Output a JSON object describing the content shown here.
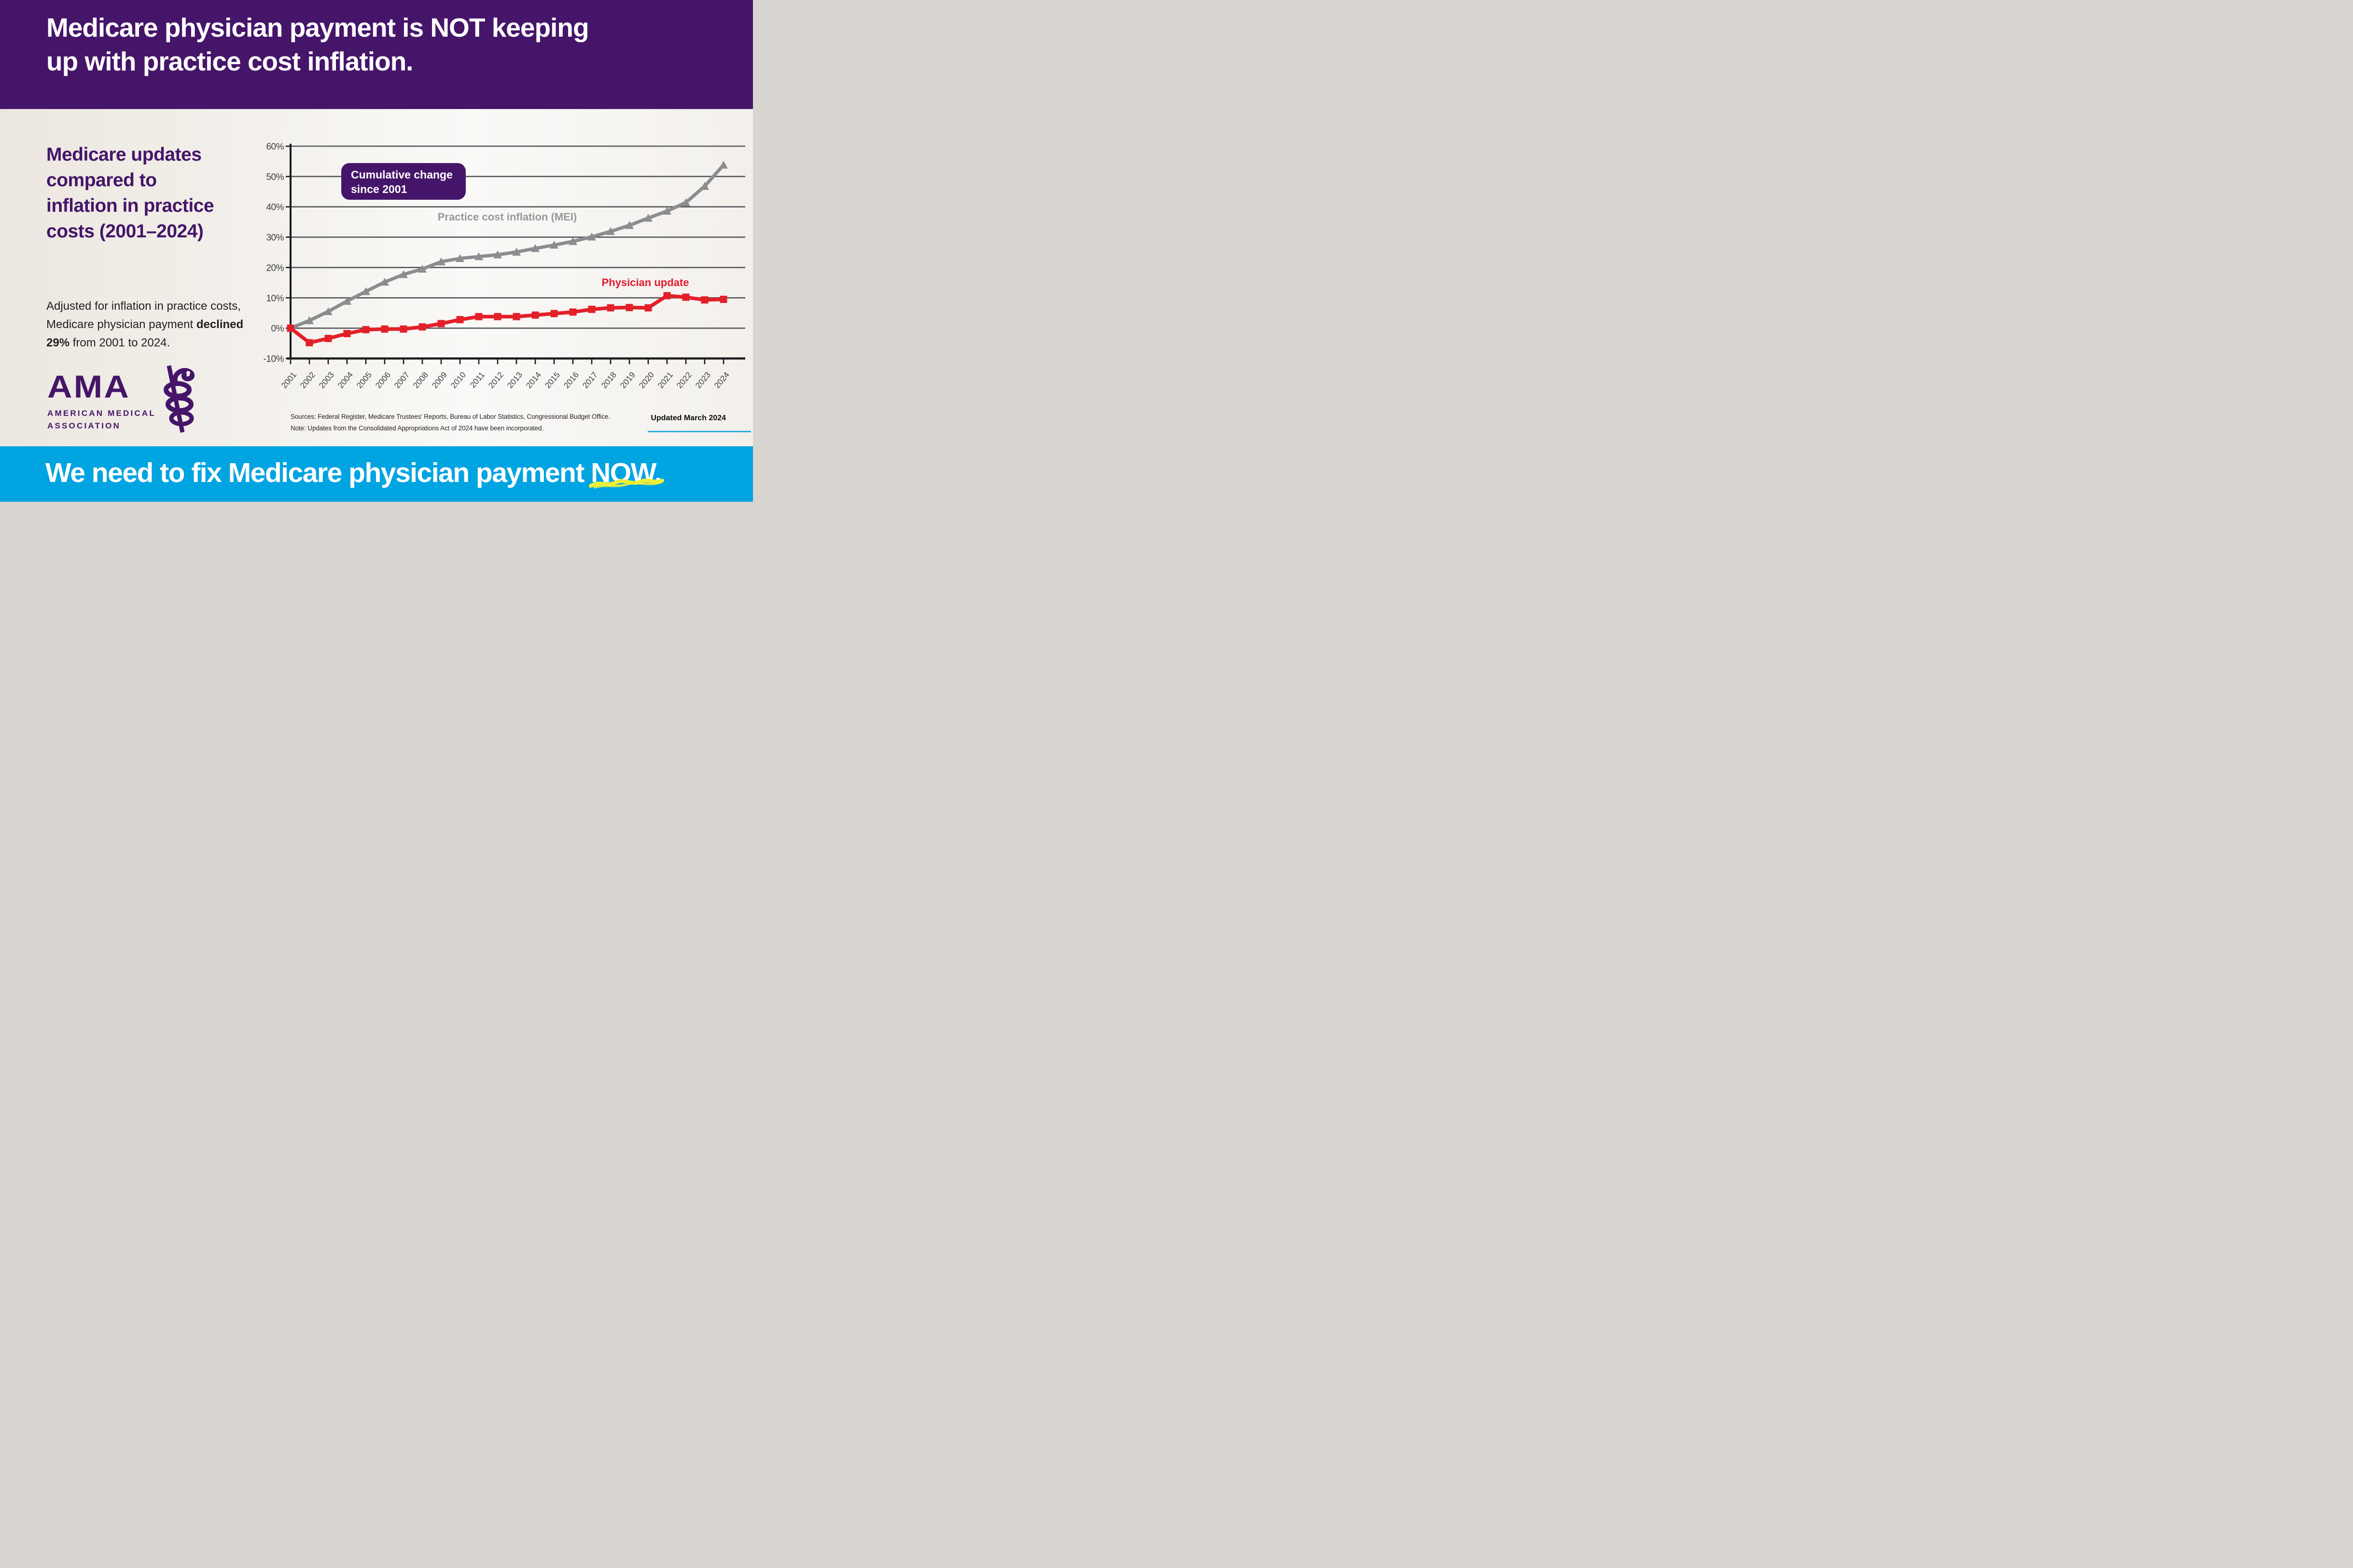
{
  "header": {
    "title_line1": "Medicare physician payment is NOT keeping",
    "title_line2": "up with practice cost inflation."
  },
  "left_panel": {
    "heading_lines": [
      "Medicare updates",
      "compared to",
      "inflation in practice",
      "costs (2001–2024)"
    ],
    "body_text_before": "Adjusted for inflation in practice costs, Medicare physician payment ",
    "body_text_bold": "declined 29%",
    "body_text_after": " from 2001 to 2024."
  },
  "logo": {
    "acronym": "AMA",
    "name_line1": "AMERICAN MEDICAL",
    "name_line2": "ASSOCIATION",
    "icon": "rod-of-asclepius-icon"
  },
  "chart_data": {
    "type": "line",
    "callout": {
      "line1": "Cumulative change",
      "line2": "since 2001"
    },
    "x": [
      2001,
      2002,
      2003,
      2004,
      2005,
      2006,
      2007,
      2008,
      2009,
      2010,
      2011,
      2012,
      2013,
      2014,
      2015,
      2016,
      2017,
      2018,
      2019,
      2020,
      2021,
      2022,
      2023,
      2024
    ],
    "series": [
      {
        "name": "Practice cost inflation (MEI)",
        "color": "#8b8d90",
        "label_color": "#97989b",
        "marker": "triangle",
        "values": [
          0,
          2.5,
          5.5,
          8.9,
          12.1,
          15.2,
          17.7,
          19.5,
          21.9,
          23.0,
          23.6,
          24.2,
          25.1,
          26.3,
          27.4,
          28.6,
          30.1,
          31.9,
          33.9,
          36.3,
          38.6,
          41.4,
          46.8,
          53.8
        ]
      },
      {
        "name": "Physician update",
        "color": "#e32029",
        "label_color": "#e31b2d",
        "marker": "square",
        "values": [
          0,
          -4.8,
          -3.4,
          -1.8,
          -0.5,
          -0.3,
          -0.3,
          0.4,
          1.5,
          2.8,
          3.8,
          3.8,
          3.8,
          4.3,
          4.8,
          5.3,
          6.2,
          6.7,
          6.8,
          6.7,
          10.7,
          10.2,
          9.3,
          9.5
        ]
      }
    ],
    "ylim": [
      -10,
      60
    ],
    "yticks": [
      60,
      50,
      40,
      30,
      20,
      10,
      0,
      -10
    ],
    "ytick_format": "percent",
    "grid": "horizontal",
    "legend_position": "inline-labels"
  },
  "sources": {
    "line1": "Sources: Federal Register, Medicare Trustees’ Reports, Bureau of Labor Statistics, Congressional Budget Office.",
    "line2": "Note: Updates from the Consolidated Appropriations Act of 2024 have been incorporated."
  },
  "updated_label": "Updated March 2024",
  "footer": {
    "text_before": "We need to fix Medicare physician payment ",
    "text_emphasis": "NOW."
  },
  "colors": {
    "brand_purple": "#451569",
    "footer_blue": "#00a4e1",
    "line_red": "#e32029",
    "line_gray": "#8b8d90",
    "grid_gray": "#55565b",
    "highlight_yellow": "#edef38"
  }
}
